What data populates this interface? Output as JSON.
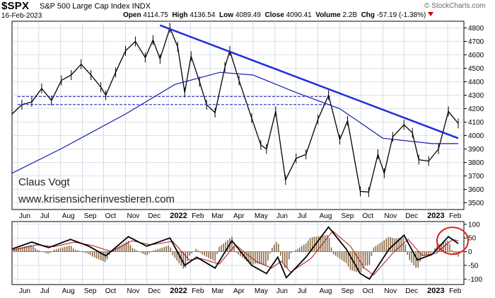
{
  "header": {
    "symbol": "$SPX",
    "name": "S&P 500 Large Cap Index INDX",
    "source": "© StockCharts.com",
    "date": "16-Feb-2023",
    "open_label": "Open",
    "open": "4114.75",
    "high_label": "High",
    "high": "4136.54",
    "low_label": "Low",
    "low": "4089.49",
    "close_label": "Close",
    "close": "4090.41",
    "volume_label": "Volume",
    "volume": "2.2B",
    "chg_label": "Chg",
    "chg": "-57.19 (-1.38%)"
  },
  "annotations": {
    "author": "Claus Vogt",
    "website": "www.krisensicherinvestieren.com"
  },
  "colors": {
    "price": "#000000",
    "moving_average": "#1a1aa8",
    "trendline": "#1f2fdc",
    "support_lines": "#1a1aa8",
    "oscillator_fast": "#000000",
    "oscillator_signal": "#b01020",
    "histogram": "#8a6a45",
    "highlight_circle": "#e02020",
    "grid": "#b8c8dc"
  },
  "chart_data": [
    {
      "type": "line",
      "ylim": [
        3450,
        4850
      ],
      "yticks": [
        3500,
        3600,
        3700,
        3800,
        3900,
        4000,
        4100,
        4200,
        4300,
        4400,
        4500,
        4600,
        4700,
        4800
      ],
      "x_tick_labels": [
        "Jun",
        "Jul",
        "Aug",
        "Sep",
        "Oct",
        "Nov",
        "Dec",
        "2022",
        "Feb",
        "Mar",
        "Apr",
        "May",
        "Jun",
        "Jul",
        "Aug",
        "Sep",
        "Oct",
        "Nov",
        "Dec",
        "2023",
        "Feb"
      ],
      "x_range": [
        "2021-05-24",
        "2023-02-24"
      ],
      "grid": true,
      "series": [
        {
          "role": "price",
          "points": [
            [
              "2021-05-24",
              4160
            ],
            [
              "2021-06-07",
              4230
            ],
            [
              "2021-06-21",
              4250
            ],
            [
              "2021-07-05",
              4350
            ],
            [
              "2021-07-19",
              4260
            ],
            [
              "2021-08-02",
              4410
            ],
            [
              "2021-08-16",
              4450
            ],
            [
              "2021-08-30",
              4530
            ],
            [
              "2021-09-13",
              4450
            ],
            [
              "2021-09-27",
              4360
            ],
            [
              "2021-10-04",
              4300
            ],
            [
              "2021-10-18",
              4470
            ],
            [
              "2021-11-01",
              4630
            ],
            [
              "2021-11-15",
              4700
            ],
            [
              "2021-11-29",
              4580
            ],
            [
              "2021-12-10",
              4710
            ],
            [
              "2021-12-20",
              4570
            ],
            [
              "2022-01-03",
              4800
            ],
            [
              "2022-01-14",
              4660
            ],
            [
              "2022-01-24",
              4320
            ],
            [
              "2022-02-02",
              4590
            ],
            [
              "2022-02-14",
              4400
            ],
            [
              "2022-02-24",
              4230
            ],
            [
              "2022-03-08",
              4170
            ],
            [
              "2022-03-22",
              4510
            ],
            [
              "2022-03-29",
              4630
            ],
            [
              "2022-04-11",
              4410
            ],
            [
              "2022-04-29",
              4130
            ],
            [
              "2022-05-12",
              3930
            ],
            [
              "2022-05-20",
              3900
            ],
            [
              "2022-06-02",
              4180
            ],
            [
              "2022-06-16",
              3670
            ],
            [
              "2022-07-01",
              3830
            ],
            [
              "2022-07-15",
              3860
            ],
            [
              "2022-08-01",
              4120
            ],
            [
              "2022-08-16",
              4300
            ],
            [
              "2022-09-01",
              3970
            ],
            [
              "2022-09-12",
              4110
            ],
            [
              "2022-09-30",
              3585
            ],
            [
              "2022-10-12",
              3580
            ],
            [
              "2022-10-25",
              3860
            ],
            [
              "2022-11-03",
              3720
            ],
            [
              "2022-11-15",
              3990
            ],
            [
              "2022-12-01",
              4080
            ],
            [
              "2022-12-13",
              4020
            ],
            [
              "2022-12-22",
              3820
            ],
            [
              "2023-01-05",
              3810
            ],
            [
              "2023-01-19",
              3900
            ],
            [
              "2023-02-02",
              4180
            ],
            [
              "2023-02-16",
              4090
            ]
          ]
        },
        {
          "role": "moving_average",
          "points": [
            [
              "2021-05-24",
              3720
            ],
            [
              "2021-08-01",
              3900
            ],
            [
              "2021-11-01",
              4160
            ],
            [
              "2022-01-10",
              4380
            ],
            [
              "2022-03-15",
              4470
            ],
            [
              "2022-05-01",
              4450
            ],
            [
              "2022-07-01",
              4320
            ],
            [
              "2022-09-01",
              4200
            ],
            [
              "2022-11-01",
              3980
            ],
            [
              "2023-01-10",
              3940
            ],
            [
              "2023-02-16",
              3940
            ]
          ]
        },
        {
          "role": "trendline",
          "points": [
            [
              "2021-12-20",
              4820
            ],
            [
              "2023-02-16",
              3980
            ]
          ]
        },
        {
          "role": "support",
          "points": [
            [
              "2021-06-01",
              4290
            ],
            [
              "2022-08-20",
              4290
            ]
          ]
        },
        {
          "role": "support",
          "points": [
            [
              "2021-06-01",
              4230
            ],
            [
              "2022-08-20",
              4230
            ]
          ]
        }
      ]
    },
    {
      "type": "line",
      "ylim": [
        -120,
        110
      ],
      "yticks": [
        -100,
        -50,
        0,
        50,
        100
      ],
      "x_tick_labels": [
        "Jun",
        "Jul",
        "Aug",
        "Sep",
        "Oct",
        "Nov",
        "Dec",
        "2022",
        "Feb",
        "Mar",
        "Apr",
        "May",
        "Jun",
        "Jul",
        "Aug",
        "Sep",
        "Oct",
        "Nov",
        "Dec",
        "2023",
        "Feb"
      ],
      "grid": true,
      "series": [
        {
          "role": "oscillator",
          "points": [
            [
              "2021-05-24",
              10
            ],
            [
              "2021-06-21",
              35
            ],
            [
              "2021-07-15",
              15
            ],
            [
              "2021-08-15",
              45
            ],
            [
              "2021-09-10",
              20
            ],
            [
              "2021-10-04",
              -15
            ],
            [
              "2021-11-05",
              55
            ],
            [
              "2021-12-01",
              20
            ],
            [
              "2022-01-03",
              50
            ],
            [
              "2022-01-24",
              -50
            ],
            [
              "2022-02-10",
              -20
            ],
            [
              "2022-03-08",
              -60
            ],
            [
              "2022-04-01",
              40
            ],
            [
              "2022-04-29",
              -50
            ],
            [
              "2022-05-20",
              -80
            ],
            [
              "2022-06-05",
              -20
            ],
            [
              "2022-06-17",
              -95
            ],
            [
              "2022-07-15",
              -20
            ],
            [
              "2022-08-16",
              90
            ],
            [
              "2022-09-10",
              10
            ],
            [
              "2022-09-30",
              -80
            ],
            [
              "2022-10-13",
              -100
            ],
            [
              "2022-11-10",
              10
            ],
            [
              "2022-12-01",
              60
            ],
            [
              "2022-12-20",
              -30
            ],
            [
              "2023-01-10",
              -10
            ],
            [
              "2023-02-02",
              55
            ],
            [
              "2023-02-16",
              30
            ]
          ]
        },
        {
          "role": "signal",
          "points": [
            [
              "2021-05-24",
              5
            ],
            [
              "2021-06-28",
              25
            ],
            [
              "2021-07-22",
              18
            ],
            [
              "2021-08-20",
              35
            ],
            [
              "2021-09-16",
              22
            ],
            [
              "2021-10-12",
              0
            ],
            [
              "2021-11-10",
              40
            ],
            [
              "2021-12-07",
              25
            ],
            [
              "2022-01-07",
              38
            ],
            [
              "2022-01-30",
              -30
            ],
            [
              "2022-02-16",
              -25
            ],
            [
              "2022-03-14",
              -45
            ],
            [
              "2022-04-06",
              25
            ],
            [
              "2022-05-05",
              -35
            ],
            [
              "2022-05-27",
              -60
            ],
            [
              "2022-06-10",
              -35
            ],
            [
              "2022-06-23",
              -75
            ],
            [
              "2022-07-22",
              -25
            ],
            [
              "2022-08-22",
              75
            ],
            [
              "2022-09-16",
              20
            ],
            [
              "2022-10-06",
              -60
            ],
            [
              "2022-10-19",
              -85
            ],
            [
              "2022-11-17",
              0
            ],
            [
              "2022-12-07",
              45
            ],
            [
              "2022-12-27",
              -15
            ],
            [
              "2023-01-16",
              -5
            ],
            [
              "2023-02-08",
              45
            ],
            [
              "2023-02-16",
              40
            ]
          ]
        }
      ]
    }
  ]
}
